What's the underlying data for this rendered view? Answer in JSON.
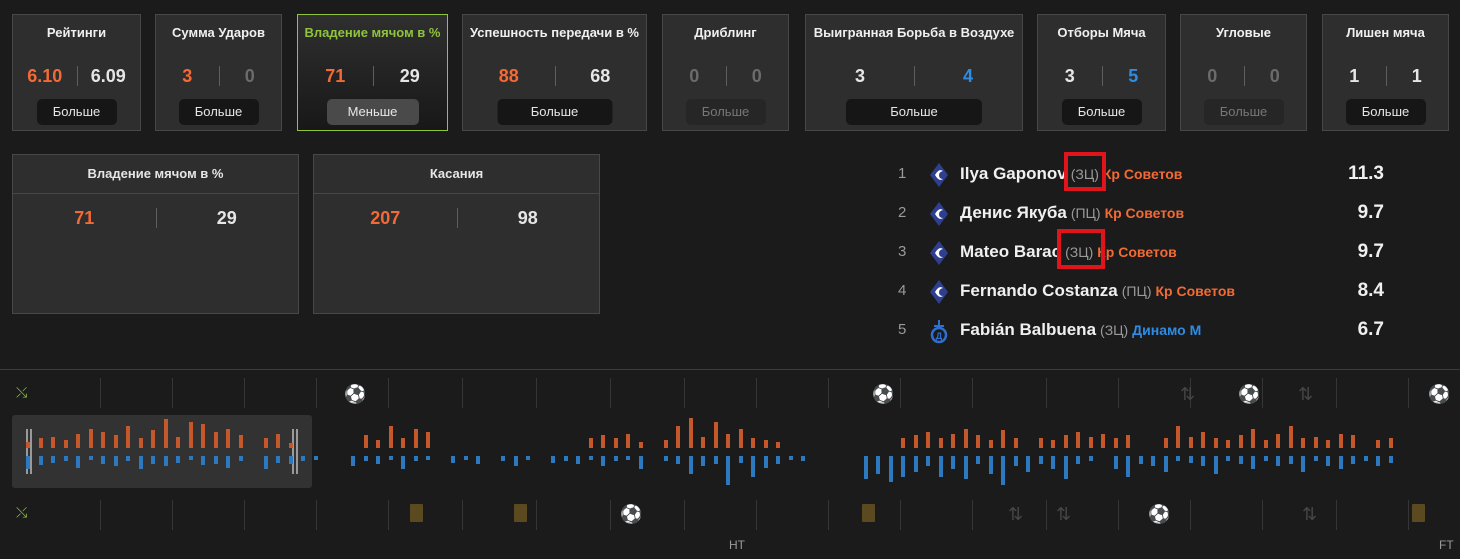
{
  "stat_cards": [
    {
      "title": "Рейтинги",
      "home": "6.10",
      "away": "6.09",
      "home_color": "#f26a35",
      "away_color": "#e6e6e6",
      "button": "Больше",
      "state": "normal"
    },
    {
      "title": "Сумма Ударов",
      "home": "3",
      "away": "0",
      "home_color": "#f26a35",
      "away_color": "#6b6b6b",
      "button": "Больше",
      "state": "normal"
    },
    {
      "title": "Владение мячом в %",
      "home": "71",
      "away": "29",
      "home_color": "#f26a35",
      "away_color": "#e6e6e6",
      "button": "Меньше",
      "state": "active"
    },
    {
      "title": "Успешность передачи в %",
      "home": "88",
      "away": "68",
      "home_color": "#f26a35",
      "away_color": "#e6e6e6",
      "button": "Больше",
      "state": "normal"
    },
    {
      "title": "Дриблинг",
      "home": "0",
      "away": "0",
      "home_color": "#6b6b6b",
      "away_color": "#6b6b6b",
      "button": "Больше",
      "state": "disabled"
    },
    {
      "title": "Выигранная Борьба в Воздухе",
      "home": "3",
      "away": "4",
      "home_color": "#e6e6e6",
      "away_color": "#2f8ce5",
      "button": "Больше",
      "state": "normal"
    },
    {
      "title": "Отборы Мяча",
      "home": "3",
      "away": "5",
      "home_color": "#e6e6e6",
      "away_color": "#2f8ce5",
      "button": "Больше",
      "state": "normal"
    },
    {
      "title": "Угловые",
      "home": "0",
      "away": "0",
      "home_color": "#6b6b6b",
      "away_color": "#6b6b6b",
      "button": "Больше",
      "state": "disabled"
    },
    {
      "title": "Лишен мяча",
      "home": "1",
      "away": "1",
      "home_color": "#e6e6e6",
      "away_color": "#e6e6e6",
      "button": "Больше",
      "state": "normal"
    }
  ],
  "detail_cards": [
    {
      "title": "Владение мячом в %",
      "home": "71",
      "away": "29"
    },
    {
      "title": "Касания",
      "home": "207",
      "away": "98"
    }
  ],
  "players": [
    {
      "rank": "1",
      "name": "Ilya Gaponov",
      "position": "(ЗЦ)",
      "team": "Кр Советов",
      "team_color": "#f26a35",
      "rating": "11.3",
      "logo": "krylia-sovetov-logo",
      "highlight": true
    },
    {
      "rank": "2",
      "name": "Денис Якуба",
      "position": "(ПЦ)",
      "team": "Кр Советов",
      "team_color": "#f26a35",
      "rating": "9.7",
      "logo": "krylia-sovetov-logo",
      "highlight": false
    },
    {
      "rank": "3",
      "name": "Mateo Barac",
      "position": "(ЗЦ)",
      "team": "Кр Советов",
      "team_color": "#f26a35",
      "rating": "9.7",
      "logo": "krylia-sovetov-logo",
      "highlight": true
    },
    {
      "rank": "4",
      "name": "Fernando Costanza",
      "position": "(ПЦ)",
      "team": "Кр Советов",
      "team_color": "#f26a35",
      "rating": "8.4",
      "logo": "krylia-sovetov-logo",
      "highlight": false
    },
    {
      "rank": "5",
      "name": "Fabián Balbuena",
      "position": "(ЗЦ)",
      "team": "Динамо М",
      "team_color": "#2f8ce5",
      "rating": "6.7",
      "logo": "dinamo-moscow-logo",
      "highlight": false
    }
  ],
  "timeline": {
    "ht_label": "HT",
    "ft_label": "FT",
    "home_color": "#c4582a",
    "away_color": "#2d79c0",
    "selection_start": 0,
    "selection_end": 0.21
  }
}
